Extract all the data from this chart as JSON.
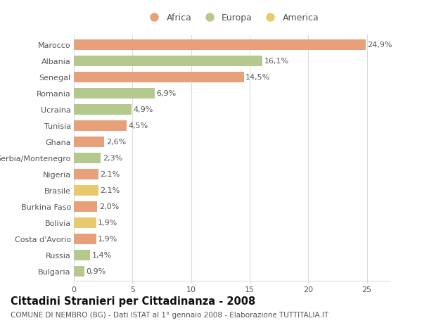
{
  "categories": [
    "Bulgaria",
    "Russia",
    "Costa d'Avorio",
    "Bolivia",
    "Burkina Faso",
    "Brasile",
    "Nigeria",
    "Serbia/Montenegro",
    "Ghana",
    "Tunisia",
    "Ucraina",
    "Romania",
    "Senegal",
    "Albania",
    "Marocco"
  ],
  "values": [
    0.9,
    1.4,
    1.9,
    1.9,
    2.0,
    2.1,
    2.1,
    2.3,
    2.6,
    4.5,
    4.9,
    6.9,
    14.5,
    16.1,
    24.9
  ],
  "labels": [
    "0,9%",
    "1,4%",
    "1,9%",
    "1,9%",
    "2,0%",
    "2,1%",
    "2,1%",
    "2,3%",
    "2,6%",
    "4,5%",
    "4,9%",
    "6,9%",
    "14,5%",
    "16,1%",
    "24,9%"
  ],
  "colors": [
    "#b5c98e",
    "#b5c98e",
    "#e8a07a",
    "#e8c96e",
    "#e8a07a",
    "#e8c96e",
    "#e8a07a",
    "#b5c98e",
    "#e8a07a",
    "#e8a07a",
    "#b5c98e",
    "#b5c98e",
    "#e8a07a",
    "#b5c98e",
    "#e8a07a"
  ],
  "legend_labels": [
    "Africa",
    "Europa",
    "America"
  ],
  "legend_colors": [
    "#e8a07a",
    "#b5c98e",
    "#e8c96e"
  ],
  "title": "Cittadini Stranieri per Cittadinanza - 2008",
  "subtitle": "COMUNE DI NEMBRO (BG) - Dati ISTAT al 1° gennaio 2008 - Elaborazione TUTTITALIA.IT",
  "xlim": [
    0,
    27
  ],
  "xticks": [
    0,
    5,
    10,
    15,
    20,
    25
  ],
  "bg_color": "#ffffff",
  "bar_height": 0.65,
  "grid_color": "#dddddd",
  "label_fontsize": 8,
  "tick_fontsize": 8,
  "title_fontsize": 10.5,
  "subtitle_fontsize": 7.5,
  "text_color": "#555555"
}
